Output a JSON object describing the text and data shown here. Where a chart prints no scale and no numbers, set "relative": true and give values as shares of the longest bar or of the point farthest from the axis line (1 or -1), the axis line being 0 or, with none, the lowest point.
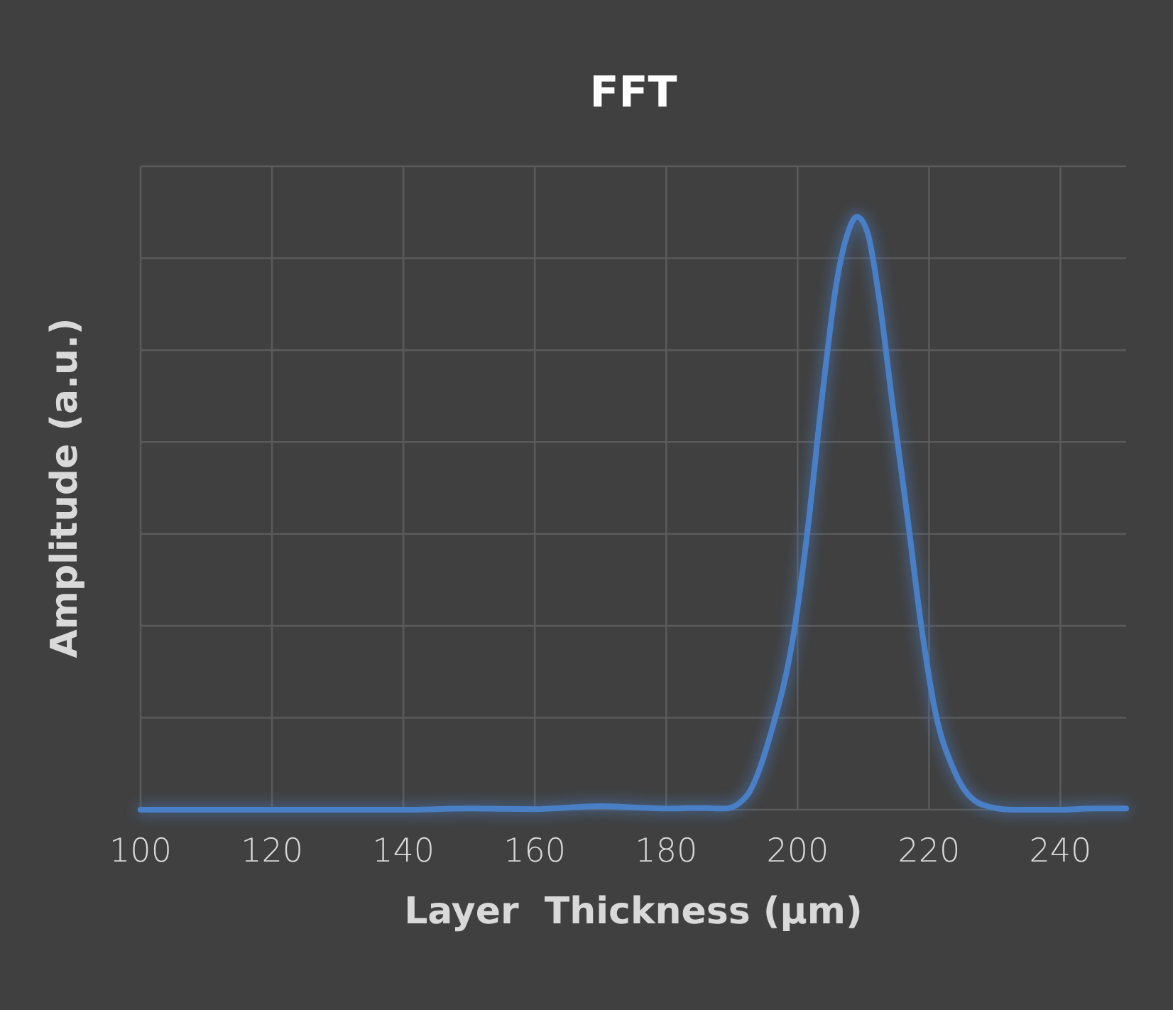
{
  "chart_data": {
    "type": "line",
    "title": "FFT",
    "xlabel": "Layer  Thickness (µm)",
    "ylabel": "Amplitude (a.u.)",
    "relative": true,
    "xlim": [
      100,
      250
    ],
    "xticks": [
      100,
      120,
      140,
      160,
      180,
      200,
      220,
      240
    ],
    "grid": true,
    "marker": "none",
    "line_style": "solid",
    "series": [
      {
        "color": "#4a7fc6",
        "x": [
          100,
          120,
          140,
          150,
          160,
          170,
          175,
          180,
          185,
          189,
          192.3,
          195.9,
          199.5,
          201.6,
          203.8,
          205.9,
          207.7,
          209,
          210.6,
          212.4,
          214.5,
          216.7,
          218.8,
          220.9,
          223.9,
          228.2,
          232.5,
          240,
          245,
          250
        ],
        "values": [
          0,
          0,
          0,
          0.002,
          0.001,
          0.006,
          0.004,
          0.002,
          0.003,
          0.002,
          0.024,
          0.128,
          0.304,
          0.479,
          0.703,
          0.887,
          0.975,
          1,
          0.975,
          0.863,
          0.679,
          0.495,
          0.312,
          0.168,
          0.064,
          0.008,
          0,
          0,
          0.002,
          0.002
        ]
      }
    ]
  }
}
